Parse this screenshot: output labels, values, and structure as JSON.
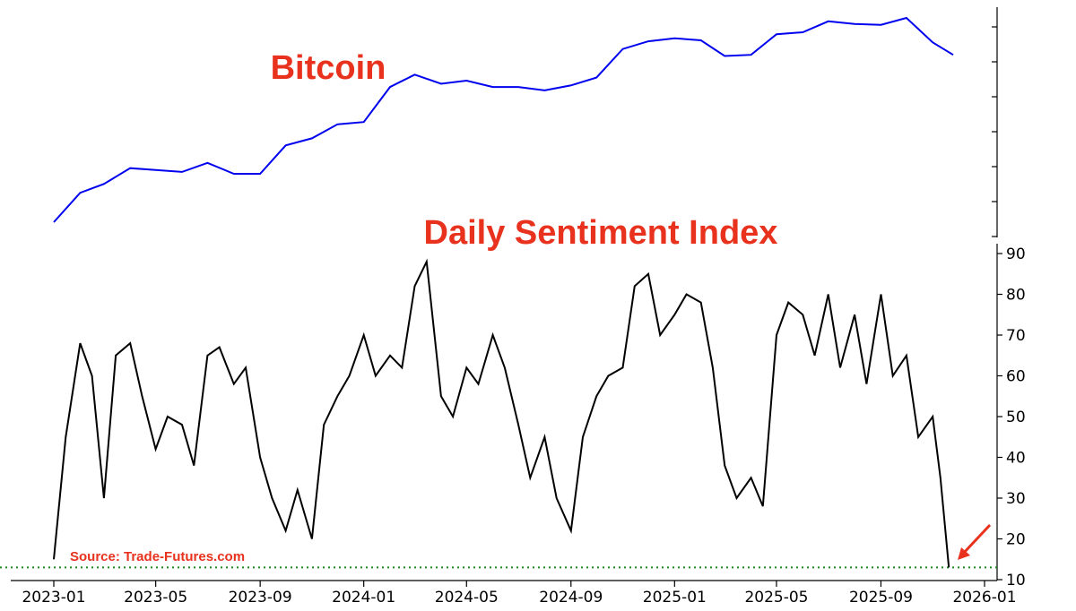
{
  "chart_data": {
    "type": "line",
    "panels": [
      {
        "title": "Bitcoin",
        "series": [
          {
            "color": "#0000ee",
            "x": [
              "2023-01-01",
              "2023-02-01",
              "2023-03-01",
              "2023-04-01",
              "2023-05-01",
              "2023-06-01",
              "2023-07-01",
              "2023-08-01",
              "2023-09-01",
              "2023-10-01",
              "2023-11-01",
              "2023-12-01",
              "2024-01-01",
              "2024-02-01",
              "2024-03-01",
              "2024-04-01",
              "2024-05-01",
              "2024-06-01",
              "2024-07-01",
              "2024-08-01",
              "2024-09-01",
              "2024-10-01",
              "2024-11-01",
              "2024-12-01",
              "2025-01-01",
              "2025-02-01",
              "2025-03-01",
              "2025-04-01",
              "2025-05-01",
              "2025-06-01",
              "2025-07-01",
              "2025-08-01",
              "2025-09-01",
              "2025-10-01",
              "2025-11-01",
              "2025-11-25"
            ],
            "values": [
              16500,
              22000,
              24000,
              28000,
              27500,
              27000,
              29500,
              26500,
              26500,
              35000,
              37500,
              43000,
              44000,
              62000,
              70000,
              64000,
              66000,
              62000,
              62000,
              60000,
              63000,
              68000,
              90000,
              97000,
              100000,
              98000,
              84000,
              85000,
              104000,
              106000,
              118000,
              115000,
              114000,
              122000,
              96000,
              85000
            ]
          }
        ]
      },
      {
        "title": "Daily Sentiment Index",
        "y_ticks": [
          10,
          20,
          30,
          40,
          50,
          60,
          70,
          80,
          90
        ],
        "ylim": [
          10,
          92
        ],
        "reference_line": 13,
        "series": [
          {
            "color": "#000000",
            "x": [
              "2023-01-01",
              "2023-01-15",
              "2023-02-01",
              "2023-02-15",
              "2023-03-01",
              "2023-03-15",
              "2023-04-01",
              "2023-04-15",
              "2023-05-01",
              "2023-05-15",
              "2023-06-01",
              "2023-06-15",
              "2023-07-01",
              "2023-07-15",
              "2023-08-01",
              "2023-08-15",
              "2023-09-01",
              "2023-09-15",
              "2023-10-01",
              "2023-10-15",
              "2023-11-01",
              "2023-11-15",
              "2023-12-01",
              "2023-12-15",
              "2024-01-01",
              "2024-01-15",
              "2024-02-01",
              "2024-02-15",
              "2024-03-01",
              "2024-03-15",
              "2024-04-01",
              "2024-04-15",
              "2024-05-01",
              "2024-05-15",
              "2024-06-01",
              "2024-06-15",
              "2024-07-01",
              "2024-07-15",
              "2024-08-01",
              "2024-08-15",
              "2024-09-01",
              "2024-09-15",
              "2024-10-01",
              "2024-10-15",
              "2024-11-01",
              "2024-11-15",
              "2024-12-01",
              "2024-12-15",
              "2025-01-01",
              "2025-01-15",
              "2025-02-01",
              "2025-02-15",
              "2025-03-01",
              "2025-03-15",
              "2025-04-01",
              "2025-04-15",
              "2025-05-01",
              "2025-05-15",
              "2025-06-01",
              "2025-06-15",
              "2025-07-01",
              "2025-07-15",
              "2025-08-01",
              "2025-08-15",
              "2025-09-01",
              "2025-09-15",
              "2025-10-01",
              "2025-10-15",
              "2025-11-01",
              "2025-11-10",
              "2025-11-20"
            ],
            "values": [
              15,
              45,
              68,
              60,
              30,
              65,
              68,
              55,
              42,
              50,
              48,
              38,
              65,
              67,
              58,
              62,
              40,
              30,
              22,
              32,
              20,
              48,
              55,
              60,
              70,
              60,
              65,
              62,
              82,
              88,
              55,
              50,
              62,
              58,
              70,
              62,
              48,
              35,
              45,
              30,
              22,
              45,
              55,
              60,
              62,
              82,
              85,
              70,
              75,
              80,
              78,
              62,
              38,
              30,
              35,
              28,
              70,
              78,
              75,
              65,
              80,
              62,
              75,
              58,
              80,
              60,
              65,
              45,
              50,
              35,
              13
            ]
          }
        ]
      }
    ],
    "x_ticks": [
      "2023-01",
      "2023-05",
      "2023-09",
      "2024-01",
      "2024-05",
      "2024-09",
      "2025-01",
      "2025-05",
      "2025-09",
      "2026-01"
    ],
    "grid": false
  },
  "annotations": {
    "source": "Source: Trade-Futures.com"
  }
}
